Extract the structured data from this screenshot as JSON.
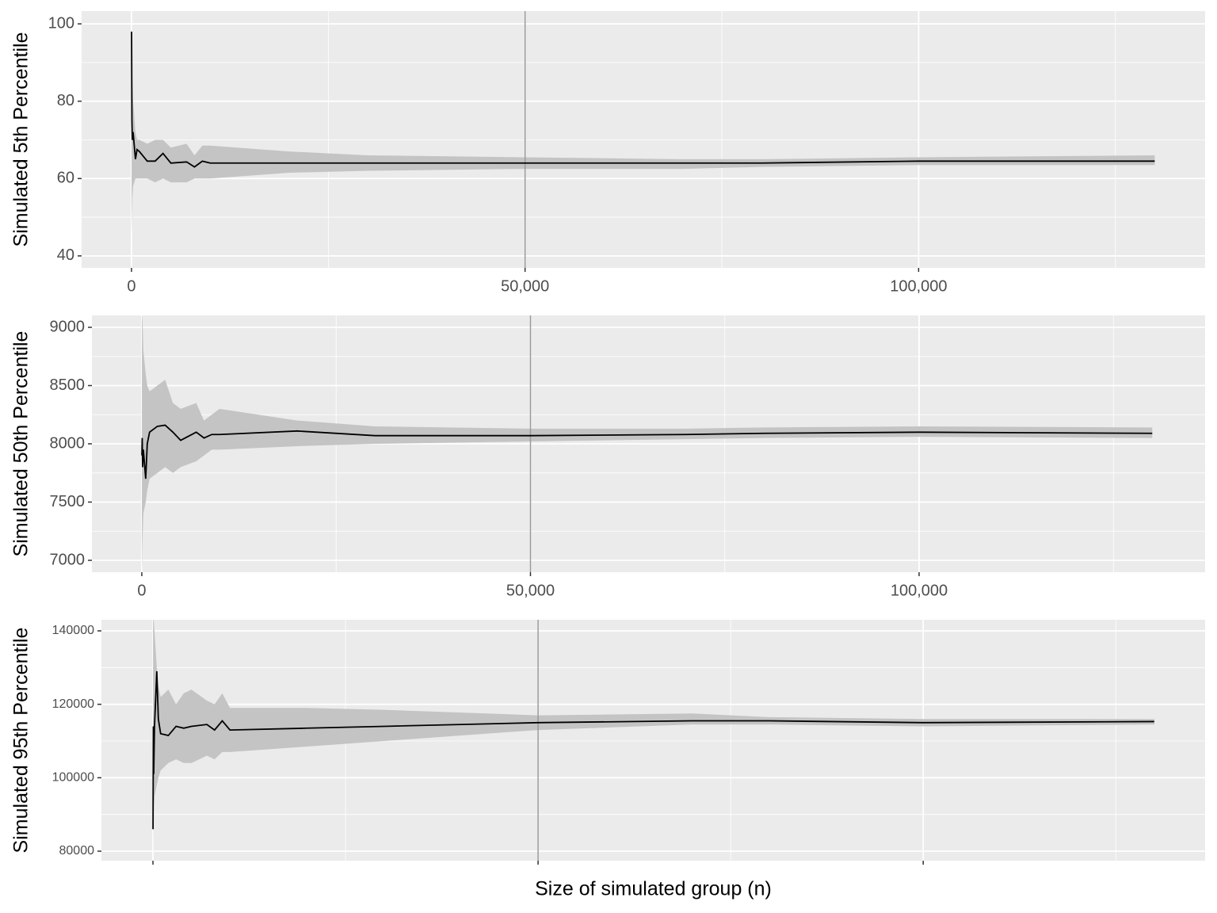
{
  "chart_data": [
    {
      "type": "line",
      "ylabel": "Simulated 5th Percentile",
      "x": [
        10,
        50,
        100,
        200,
        500,
        700,
        1000,
        2000,
        3000,
        4000,
        5000,
        7000,
        8000,
        9000,
        10000,
        20000,
        30000,
        50000,
        70000,
        80000,
        100000,
        130000
      ],
      "values": [
        98,
        75,
        70,
        72,
        65,
        67.5,
        67,
        64.5,
        64.5,
        66.5,
        64,
        64.3,
        63,
        64.5,
        64,
        64,
        64,
        64,
        64,
        64,
        64.5,
        64.5
      ],
      "lower": [
        45,
        50,
        55,
        58,
        60,
        60,
        60,
        60,
        59,
        60,
        59,
        59,
        60,
        60,
        60,
        61.5,
        62,
        62.5,
        62.5,
        63,
        63.5,
        63.5
      ],
      "upper": [
        100,
        88,
        86,
        80,
        72,
        70,
        70,
        69,
        70,
        70,
        68,
        69,
        66,
        68.5,
        68.5,
        67,
        66,
        65.5,
        65,
        65,
        65.5,
        66
      ],
      "color": "#000000",
      "band_color": "#c4c4c4",
      "xlim": [
        -6340,
        136400
      ],
      "xticks": [
        0,
        {
          "value": 50000,
          "label": "50,000"
        },
        {
          "value": 100000,
          "label": "100,000"
        }
      ],
      "ylim": [
        36.9,
        103.3
      ],
      "yticks": [
        40,
        60,
        80,
        100
      ],
      "vline": 50000,
      "vline_color": "#999999",
      "grid": true,
      "show_xtick_labels": true
    },
    {
      "type": "line",
      "ylabel": "Simulated 50th Percentile",
      "x": [
        10,
        50,
        100,
        200,
        500,
        700,
        1000,
        2000,
        3000,
        4000,
        5000,
        7000,
        8000,
        9000,
        10000,
        20000,
        30000,
        50000,
        70000,
        80000,
        100000,
        130000
      ],
      "values": [
        7900,
        8050,
        7800,
        7950,
        7700,
        8000,
        8100,
        8150,
        8160,
        8100,
        8030,
        8100,
        8050,
        8080,
        8080,
        8110,
        8070,
        8070,
        8080,
        8090,
        8100,
        8090
      ],
      "lower": [
        6900,
        7000,
        7200,
        7400,
        7500,
        7600,
        7700,
        7750,
        7800,
        7750,
        7800,
        7850,
        7900,
        7950,
        7950,
        7980,
        8000,
        8020,
        8040,
        8050,
        8060,
        8050
      ],
      "upper": [
        9100,
        9100,
        9050,
        8800,
        8600,
        8500,
        8450,
        8500,
        8550,
        8350,
        8300,
        8350,
        8200,
        8250,
        8300,
        8200,
        8150,
        8130,
        8130,
        8140,
        8150,
        8140
      ],
      "color": "#000000",
      "band_color": "#c4c4c4",
      "xlim": [
        -6420,
        136800
      ],
      "xticks": [
        0,
        {
          "value": 50000,
          "label": "50,000"
        },
        {
          "value": 100000,
          "label": "100,000"
        }
      ],
      "ylim": [
        6898,
        9102
      ],
      "yticks": [
        7000,
        7500,
        8000,
        8500,
        9000
      ],
      "vline": 50000,
      "vline_color": "#999999",
      "grid": true,
      "show_xtick_labels": true
    },
    {
      "type": "line",
      "ylabel": "Simulated 95th Percentile",
      "xlabel": "Size of simulated group (n)",
      "x": [
        10,
        50,
        100,
        200,
        500,
        700,
        1000,
        2000,
        3000,
        4000,
        5000,
        7000,
        8000,
        9000,
        10000,
        20000,
        30000,
        50000,
        70000,
        80000,
        100000,
        130000
      ],
      "values": [
        86000,
        114000,
        101000,
        114000,
        129000,
        116000,
        112000,
        111500,
        114000,
        113500,
        114000,
        114500,
        113000,
        115500,
        113000,
        113500,
        114000,
        115000,
        115500,
        115500,
        115000,
        115300
      ],
      "lower": [
        78000,
        90000,
        92000,
        95000,
        98000,
        100000,
        102000,
        104000,
        105000,
        104000,
        104000,
        106000,
        105000,
        107000,
        107000,
        108500,
        110000,
        113000,
        114500,
        114500,
        114000,
        114500
      ],
      "upper": [
        143000,
        143000,
        143000,
        140000,
        130000,
        125000,
        122000,
        124000,
        120000,
        123000,
        124000,
        121000,
        120000,
        123000,
        119000,
        119000,
        118500,
        117000,
        117500,
        116500,
        116000,
        116000
      ],
      "color": "#000000",
      "band_color": "#c4c4c4",
      "xlim": [
        -6690,
        136600
      ],
      "xticks": [
        0,
        50000,
        100000
      ],
      "ylim": [
        77410,
        143022
      ],
      "yticks": [
        80000,
        100000,
        120000,
        140000
      ],
      "vline": 50000,
      "vline_color": "#999999",
      "grid": true,
      "show_xtick_labels": false
    }
  ]
}
